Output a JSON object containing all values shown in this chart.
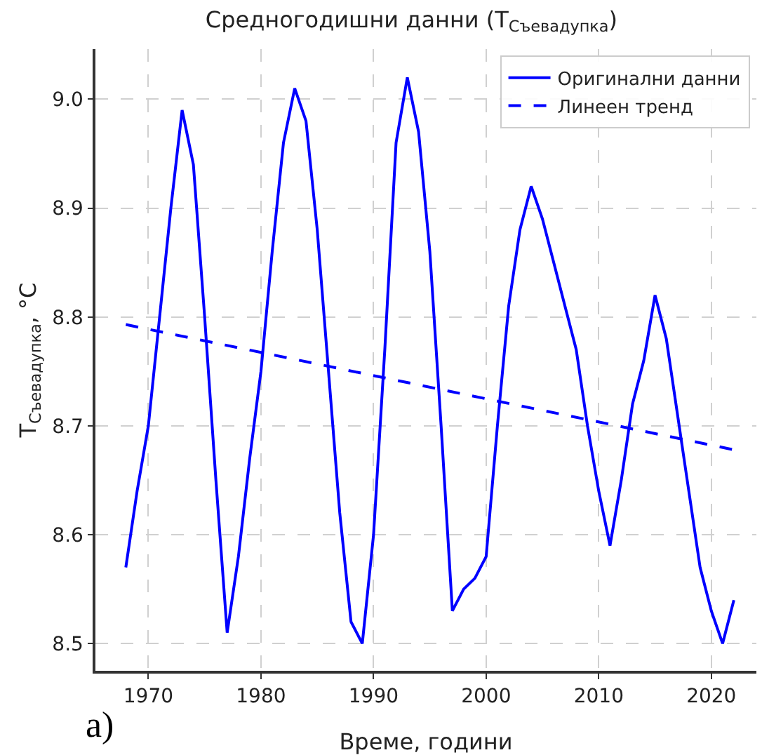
{
  "chart_data": {
    "type": "line",
    "title": "Средногодишни данни (T$_{Съевадупка}$)",
    "xlabel": "Време, години",
    "ylabel": "T$_{Съевадупка}$, °C",
    "x": [
      1968,
      1969,
      1970,
      1971,
      1972,
      1973,
      1974,
      1975,
      1976,
      1977,
      1978,
      1979,
      1980,
      1981,
      1982,
      1983,
      1984,
      1985,
      1986,
      1987,
      1988,
      1989,
      1990,
      1991,
      1992,
      1993,
      1994,
      1995,
      1996,
      1997,
      1998,
      1999,
      2000,
      2001,
      2002,
      2003,
      2004,
      2005,
      2006,
      2007,
      2008,
      2009,
      2010,
      2011,
      2012,
      2013,
      2014,
      2015,
      2016,
      2017,
      2018,
      2019,
      2020,
      2021,
      2022
    ],
    "series": [
      {
        "name": "Оригинални данни",
        "color": "#0000ff",
        "line_style": "solid",
        "values": [
          8.57,
          8.64,
          8.7,
          8.8,
          8.9,
          8.99,
          8.94,
          8.8,
          8.65,
          8.51,
          8.58,
          8.67,
          8.75,
          8.86,
          8.96,
          9.01,
          8.98,
          8.88,
          8.75,
          8.62,
          8.52,
          8.5,
          8.6,
          8.77,
          8.96,
          9.02,
          8.97,
          8.86,
          8.7,
          8.53,
          8.55,
          8.56,
          8.58,
          8.7,
          8.81,
          8.88,
          8.92,
          8.89,
          8.85,
          8.81,
          8.77,
          8.7,
          8.64,
          8.59,
          8.65,
          8.72,
          8.76,
          8.82,
          8.78,
          8.71,
          8.64,
          8.57,
          8.53,
          8.5,
          8.54
        ]
      },
      {
        "name": "Линеен тренд",
        "color": "#0000ff",
        "line_style": "dashed",
        "x": [
          1968,
          2022
        ],
        "values": [
          8.793,
          8.678
        ]
      }
    ],
    "xlim": [
      1965.3,
      2024
    ],
    "xticks": [
      1970,
      1980,
      1990,
      2000,
      2010,
      2020
    ],
    "ylim": [
      8.475,
      9.046
    ],
    "yticks": [
      8.5,
      8.6,
      8.7,
      8.8,
      8.9,
      {
        "value": 9,
        "label": "9.0"
      }
    ],
    "grid": true,
    "legend": "top right",
    "marker": "none",
    "annotations": [
      "а)"
    ]
  }
}
